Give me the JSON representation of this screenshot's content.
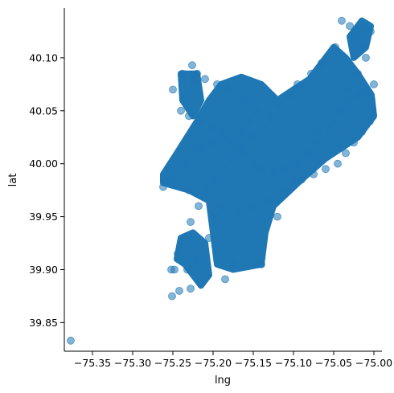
{
  "chart_data": {
    "type": "scatter",
    "title": "",
    "xlabel": "lng",
    "ylabel": "lat",
    "xlim": [
      -75.385,
      -74.99
    ],
    "ylim": [
      39.823,
      40.147
    ],
    "x_ticks": [
      -75.35,
      -75.3,
      -75.25,
      -75.2,
      -75.15,
      -75.1,
      -75.05,
      -75.0
    ],
    "x_tick_labels": [
      "−75.35",
      "−75.30",
      "−75.25",
      "−75.20",
      "−75.15",
      "−75.10",
      "−75.05",
      "−75.00"
    ],
    "y_ticks": [
      39.85,
      39.9,
      39.95,
      40.0,
      40.05,
      40.1
    ],
    "y_tick_labels": [
      "39.85",
      "39.90",
      "39.95",
      "40.00",
      "40.05",
      "40.10"
    ],
    "grid": false,
    "point_color": "#1f77b4",
    "point_alpha": 0.55,
    "series": [
      {
        "name": "points",
        "x": [
          -75.377,
          -75.251,
          -75.242,
          -75.228,
          -75.232,
          -75.248,
          -75.222,
          -75.205,
          -75.197,
          -75.175,
          -75.14,
          -75.12,
          -75.1,
          -75.08,
          -75.07,
          -75.05,
          -75.04,
          -75.03,
          -75.02,
          -75.01,
          -75.0,
          -75.002,
          -75.005,
          -75.015,
          -75.025,
          -75.035,
          -75.045,
          -75.06,
          -75.075,
          -75.09,
          -75.11,
          -75.13,
          -75.15,
          -75.17,
          -75.19,
          -75.21,
          -75.23,
          -75.25,
          -75.262,
          -75.258,
          -75.245,
          -75.235,
          -75.225,
          -75.215,
          -75.2,
          -75.185,
          -75.165,
          -75.155,
          -75.145,
          -75.16,
          -75.18,
          -75.195,
          -75.21,
          -75.22,
          -75.238,
          -75.25,
          -75.24,
          -75.23,
          -75.215,
          -75.2,
          -75.19,
          -75.175,
          -75.16,
          -75.15,
          -75.14,
          -75.125,
          -75.11,
          -75.095,
          -75.085,
          -75.07,
          -75.055,
          -75.045,
          -75.035,
          -75.02,
          -75.01,
          -75.004,
          -75.012,
          -75.028,
          -75.048,
          -75.065,
          -75.078,
          -75.095,
          -75.105,
          -75.118,
          -75.128,
          -75.138,
          -75.152,
          -75.165,
          -75.178,
          -75.188,
          -75.198,
          -75.208,
          -75.218,
          -75.228,
          -75.236,
          -75.244,
          -75.252,
          -75.226,
          -75.224,
          -75.04,
          -75.03,
          -75.02,
          -75.012,
          -75.185
        ],
        "y": [
          39.833,
          39.875,
          39.88,
          39.882,
          39.9,
          39.9,
          39.91,
          39.93,
          39.95,
          39.905,
          39.905,
          39.95,
          39.985,
          40.01,
          40.03,
          40.04,
          40.05,
          40.06,
          40.065,
          40.07,
          40.075,
          40.05,
          40.04,
          40.03,
          40.02,
          40.01,
          40.0,
          39.995,
          39.99,
          39.985,
          39.975,
          39.965,
          39.96,
          39.955,
          39.96,
          39.97,
          39.975,
          39.98,
          39.978,
          39.985,
          39.99,
          40.0,
          40.01,
          40.015,
          40.02,
          40.025,
          40.03,
          40.04,
          40.05,
          40.06,
          40.07,
          40.075,
          40.08,
          40.085,
          40.085,
          40.07,
          40.05,
          40.045,
          40.04,
          40.035,
          40.03,
          40.02,
          40.01,
          40.0,
          39.995,
          39.99,
          39.995,
          40.0,
          40.01,
          40.02,
          40.035,
          40.05,
          40.07,
          40.085,
          40.1,
          40.125,
          40.13,
          40.12,
          40.11,
          40.095,
          40.085,
          40.075,
          40.065,
          40.055,
          40.045,
          40.035,
          40.025,
          40.015,
          40.005,
          39.995,
          39.985,
          39.975,
          39.96,
          39.945,
          39.93,
          39.915,
          39.9,
          40.093,
          40.078,
          40.135,
          40.13,
          40.12,
          40.11,
          39.891
        ]
      }
    ]
  }
}
